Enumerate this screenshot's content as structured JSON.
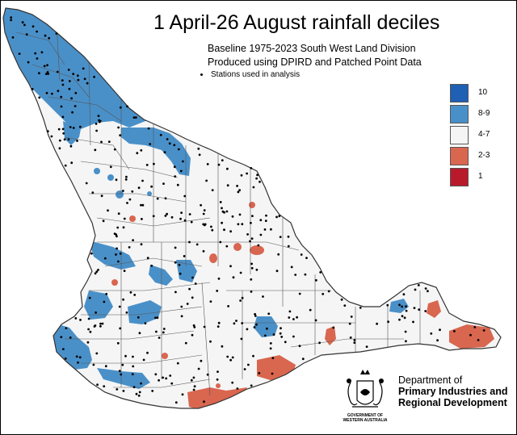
{
  "title": "1 April-26 August rainfall deciles",
  "subtitle_lines": [
    "Baseline 1975-2023 South West Land Division",
    "Produced using DPIRD and Patched Point Data"
  ],
  "stations_label": "Stations used in analysis",
  "legend": [
    {
      "label": "10",
      "color": "#1f5fb4"
    },
    {
      "label": "8-9",
      "color": "#4a90c8"
    },
    {
      "label": "4-7",
      "color": "#f5f5f5"
    },
    {
      "label": "2-3",
      "color": "#d9664f"
    },
    {
      "label": "1",
      "color": "#b81a2c"
    }
  ],
  "colors": {
    "land": "#f5f5f5",
    "outline": "#333333",
    "boundary": "#555555",
    "above": "#4a90c8",
    "below": "#d9664f",
    "background": "#ffffff"
  },
  "organisation": {
    "crest_caption": "GOVERNMENT OF\nWESTERN AUSTRALIA",
    "name_lines": [
      "Department of",
      "Primary Industries and",
      "Regional Development"
    ]
  },
  "icons": [
    "wa-government-crest-icon",
    "station-dot-icon"
  ]
}
